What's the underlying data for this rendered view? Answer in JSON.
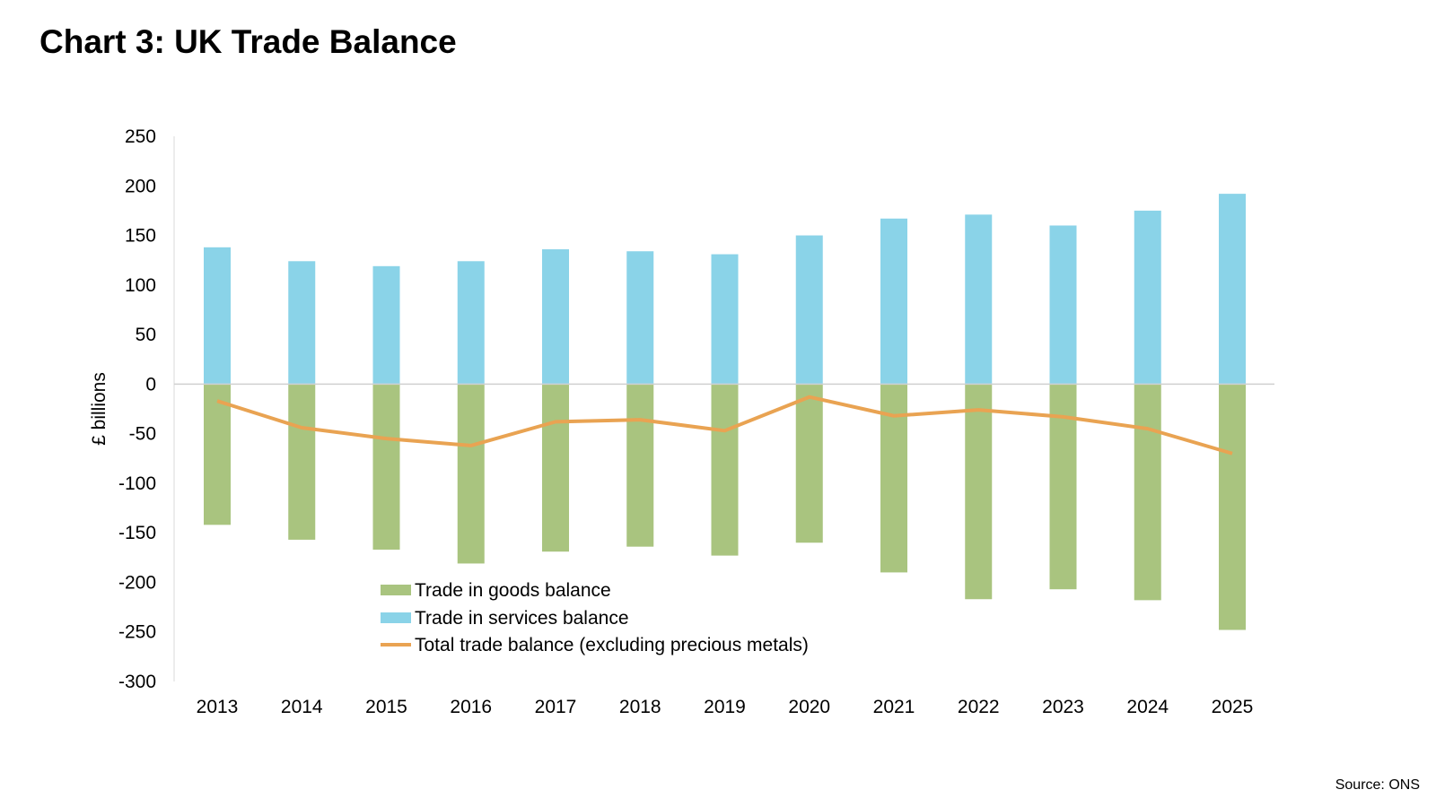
{
  "title": "Chart 3: UK Trade Balance",
  "source": "Source: ONS",
  "chart_data": {
    "type": "bar",
    "stacked": false,
    "title": "Chart 3: UK Trade Balance",
    "xlabel": "",
    "ylabel": "£ billions",
    "ylim": [
      -300,
      250
    ],
    "yticks": [
      250,
      200,
      150,
      100,
      50,
      0,
      -50,
      -100,
      -150,
      -200,
      -250,
      -300
    ],
    "grid": false,
    "legend_position": "bottom-left-inside",
    "categories": [
      "2013",
      "2014",
      "2015",
      "2016",
      "2017",
      "2018",
      "2019",
      "2020",
      "2021",
      "2022",
      "2023",
      "2024",
      "2025"
    ],
    "series": [
      {
        "name": "Trade in goods balance",
        "kind": "bar",
        "color": "#a9c47f",
        "values": [
          -142,
          -157,
          -167,
          -181,
          -169,
          -164,
          -173,
          -160,
          -190,
          -217,
          -207,
          -218,
          -248
        ]
      },
      {
        "name": "Trade in services balance",
        "kind": "bar",
        "color": "#8ad3e8",
        "values": [
          138,
          124,
          119,
          124,
          136,
          134,
          131,
          150,
          167,
          171,
          160,
          175,
          192
        ]
      },
      {
        "name": "Total trade balance (excluding precious metals)",
        "kind": "line",
        "color": "#e9a352",
        "values": [
          -17,
          -44,
          -55,
          -62,
          -38,
          -36,
          -47,
          -13,
          -32,
          -26,
          -33,
          -45,
          -70
        ]
      }
    ]
  }
}
